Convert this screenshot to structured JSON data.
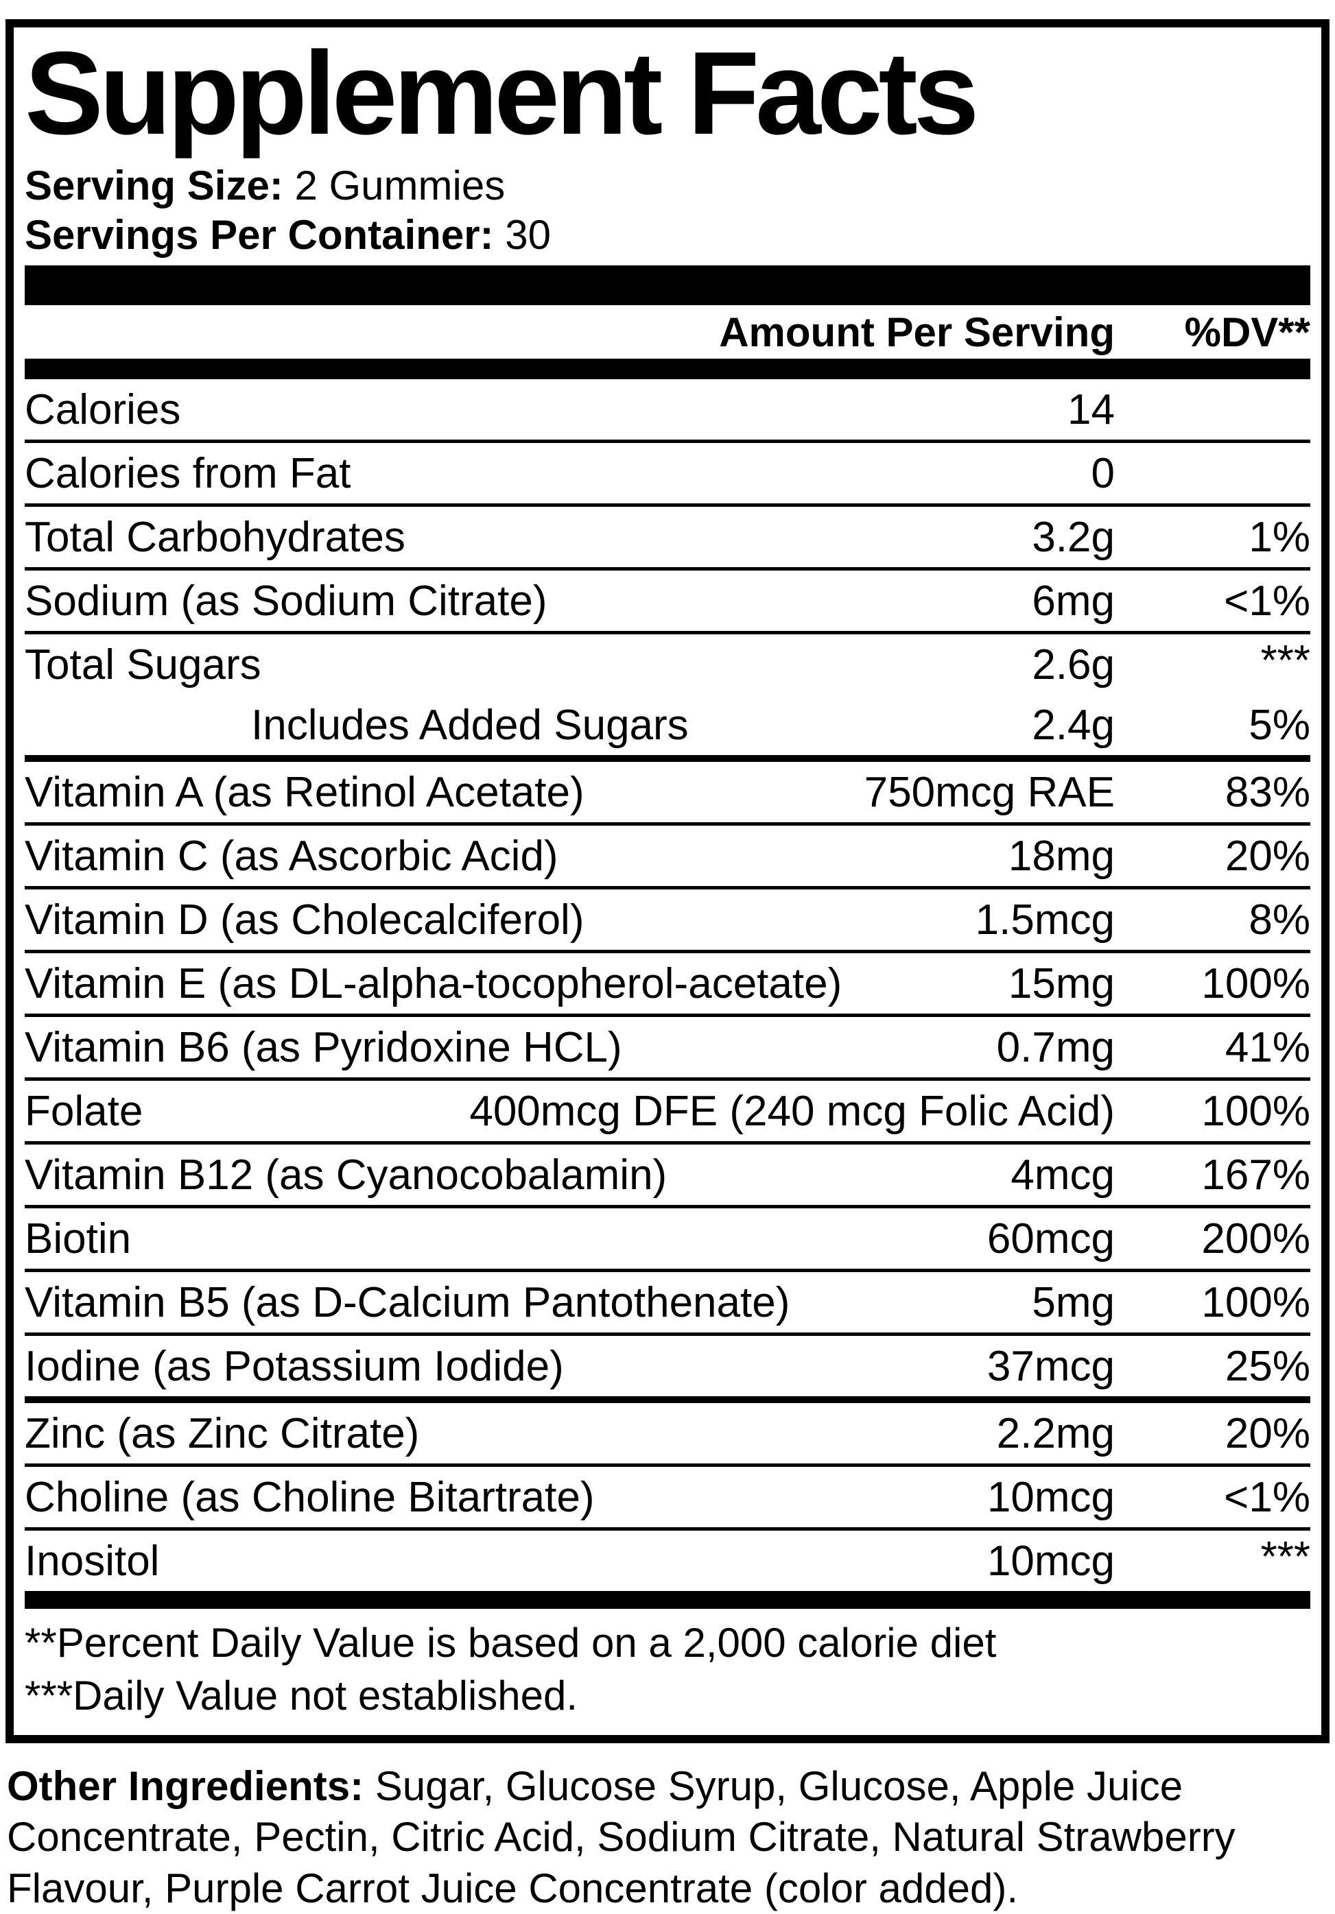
{
  "title": "Supplement Facts",
  "serving": {
    "size_label": "Serving Size:",
    "size_value": " 2 Gummies",
    "per_container_label": "Servings Per Container:",
    "per_container_value": " 30"
  },
  "header": {
    "amount": "Amount Per Serving",
    "dv": "%DV**"
  },
  "rows": [
    {
      "name": "Calories",
      "amount": "14",
      "dv": "",
      "divider_before": "none",
      "indent": false
    },
    {
      "name": "Calories from Fat",
      "amount": "0",
      "dv": "",
      "divider_before": "thin",
      "indent": false
    },
    {
      "name": "Total Carbohydrates",
      "amount": "3.2g",
      "dv": "1%",
      "divider_before": "thin",
      "indent": false
    },
    {
      "name": "Sodium (as Sodium Citrate)",
      "amount": "6mg",
      "dv": "<1%",
      "divider_before": "thin",
      "indent": false
    },
    {
      "name": "Total Sugars",
      "amount": "2.6g",
      "dv": "***",
      "divider_before": "thin",
      "indent": false
    },
    {
      "name": "Includes Added Sugars",
      "amount": "2.4g",
      "dv": "5%",
      "divider_before": "none",
      "indent": true
    },
    {
      "name": "Vitamin A (as Retinol Acetate)",
      "amount": "750mcg RAE",
      "dv": "83%",
      "divider_before": "medium",
      "indent": false
    },
    {
      "name": "Vitamin C (as Ascorbic Acid)",
      "amount": "18mg",
      "dv": "20%",
      "divider_before": "thin",
      "indent": false
    },
    {
      "name": "Vitamin D (as Cholecalciferol)",
      "amount": "1.5mcg",
      "dv": "8%",
      "divider_before": "thin",
      "indent": false
    },
    {
      "name": "Vitamin E (as DL-alpha-tocopherol-acetate)",
      "amount": "15mg",
      "dv": "100%",
      "divider_before": "thin",
      "indent": false
    },
    {
      "name": "Vitamin B6 (as Pyridoxine HCL)",
      "amount": "0.7mg",
      "dv": "41%",
      "divider_before": "thin",
      "indent": false
    },
    {
      "name": "Folate",
      "amount": "400mcg DFE (240 mcg Folic Acid)",
      "dv": "100%",
      "divider_before": "thin",
      "indent": false
    },
    {
      "name": "Vitamin B12 (as Cyanocobalamin)",
      "amount": "4mcg",
      "dv": "167%",
      "divider_before": "thin",
      "indent": false
    },
    {
      "name": "Biotin",
      "amount": "60mcg",
      "dv": "200%",
      "divider_before": "thin",
      "indent": false
    },
    {
      "name": "Vitamin B5 (as D-Calcium Pantothenate)",
      "amount": "5mg",
      "dv": "100%",
      "divider_before": "thin",
      "indent": false
    },
    {
      "name": "Iodine (as Potassium Iodide)",
      "amount": "37mcg",
      "dv": "25%",
      "divider_before": "thin",
      "indent": false
    },
    {
      "name": "Zinc (as Zinc Citrate)",
      "amount": "2.2mg",
      "dv": "20%",
      "divider_before": "medium",
      "indent": false
    },
    {
      "name": "Choline (as Choline Bitartrate)",
      "amount": "10mcg",
      "dv": "<1%",
      "divider_before": "thin",
      "indent": false
    },
    {
      "name": "Inositol",
      "amount": "10mcg",
      "dv": "***",
      "divider_before": "thin",
      "indent": false
    }
  ],
  "footnotes": [
    "**Percent Daily Value is based on a 2,000 calorie diet",
    "***Daily Value not established."
  ],
  "other_ingredients": {
    "label": "Other Ingredients:",
    "text": " Sugar, Glucose Syrup, Glucose, Apple Juice Concentrate, Pectin, Citric Acid, Sodium Citrate, Natural Strawberry Flavour, Purple Carrot Juice Concentrate (color added)."
  },
  "colors": {
    "ink": "#000000",
    "paper": "#ffffff"
  }
}
